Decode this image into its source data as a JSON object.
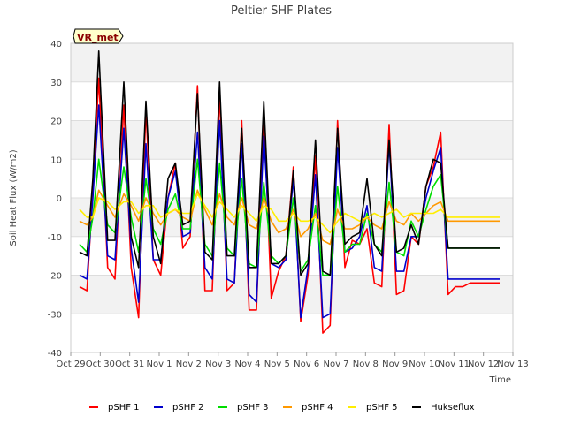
{
  "chart_data": {
    "type": "line",
    "title": "Peltier SHF Plates",
    "xlabel": "Time",
    "ylabel": "Soil Heat Flux (W/m2)",
    "badge": "VR_met",
    "x_ticks": [
      "Oct 29",
      "Oct 30",
      "Oct 31",
      "Nov 1",
      "Nov 2",
      "Nov 3",
      "Nov 4",
      "Nov 5",
      "Nov 6",
      "Nov 7",
      "Nov 8",
      "Nov 9",
      "Nov 10",
      "Nov 11",
      "Nov 12",
      "Nov 13"
    ],
    "xlim": [
      0,
      15
    ],
    "ylim": [
      -40,
      40
    ],
    "y_ticks": [
      -40,
      -30,
      -20,
      -10,
      0,
      10,
      20,
      30,
      40
    ],
    "grid": true,
    "background_bands": true,
    "legend_position": "bottom",
    "series": [
      {
        "name": "pSHF 1",
        "color": "#ff0000",
        "x": [
          0.3,
          0.55,
          0.75,
          0.95,
          1.25,
          1.5,
          1.8,
          2.05,
          2.3,
          2.55,
          2.8,
          3.05,
          3.3,
          3.55,
          3.8,
          4.05,
          4.3,
          4.55,
          4.8,
          5.05,
          5.3,
          5.55,
          5.8,
          6.05,
          6.3,
          6.55,
          6.8,
          7.05,
          7.3,
          7.55,
          7.8,
          8.05,
          8.3,
          8.55,
          8.8,
          9.05,
          9.3,
          9.55,
          9.8,
          10.05,
          10.3,
          10.55,
          10.8,
          11.05,
          11.3,
          11.55,
          11.8,
          12.05,
          12.3,
          12.55,
          12.8,
          13.05,
          13.3,
          13.55,
          13.8,
          14.05,
          14.3,
          14.55
        ],
        "y": [
          -23,
          -24,
          2,
          31,
          -18,
          -21,
          24,
          -18,
          -31,
          23,
          -16,
          -20,
          0,
          9,
          -13,
          -10,
          29,
          -24,
          -24,
          27,
          -24,
          -22,
          20,
          -29,
          -29,
          22,
          -26,
          -19,
          -15,
          8,
          -32,
          -20,
          11,
          -35,
          -33,
          20,
          -18,
          -11,
          -12,
          -8,
          -22,
          -23,
          19,
          -25,
          -24,
          -10,
          -12,
          3,
          8,
          17,
          -25,
          -23,
          -23,
          -22,
          -22,
          -22,
          -22,
          -22
        ]
      },
      {
        "name": "pSHF 2",
        "color": "#0000cc",
        "x": [
          0.3,
          0.55,
          0.75,
          0.95,
          1.25,
          1.5,
          1.8,
          2.05,
          2.3,
          2.55,
          2.8,
          3.05,
          3.3,
          3.55,
          3.8,
          4.05,
          4.3,
          4.55,
          4.8,
          5.05,
          5.3,
          5.55,
          5.8,
          6.05,
          6.3,
          6.55,
          6.8,
          7.05,
          7.3,
          7.55,
          7.8,
          8.05,
          8.3,
          8.55,
          8.8,
          9.05,
          9.3,
          9.55,
          9.8,
          10.05,
          10.3,
          10.55,
          10.8,
          11.05,
          11.3,
          11.55,
          11.8,
          12.05,
          12.3,
          12.55,
          12.8,
          13.05,
          13.3,
          13.55,
          13.8,
          14.05,
          14.3,
          14.55
        ],
        "y": [
          -20,
          -21,
          0,
          24,
          -15,
          -16,
          18,
          -13,
          -27,
          14,
          -16,
          -16,
          0,
          7,
          -10,
          -9,
          17,
          -18,
          -21,
          20,
          -21,
          -22,
          14,
          -25,
          -27,
          16,
          -17,
          -18,
          -16,
          5,
          -31,
          -18,
          6,
          -31,
          -30,
          13,
          -14,
          -13,
          -10,
          -2,
          -18,
          -19,
          14,
          -19,
          -19,
          -10,
          -10,
          0,
          7,
          13,
          -21,
          -21,
          -21,
          -21,
          -21,
          -21,
          -21,
          -21
        ]
      },
      {
        "name": "pSHF 3",
        "color": "#00dd00",
        "x": [
          0.3,
          0.55,
          0.75,
          0.95,
          1.25,
          1.5,
          1.8,
          2.05,
          2.3,
          2.55,
          2.8,
          3.05,
          3.3,
          3.55,
          3.8,
          4.05,
          4.3,
          4.55,
          4.8,
          5.05,
          5.3,
          5.55,
          5.8,
          6.05,
          6.3,
          6.55,
          6.8,
          7.05,
          7.3,
          7.55,
          7.8,
          8.05,
          8.3,
          8.55,
          8.8,
          9.05,
          9.3,
          9.55,
          9.8,
          10.05,
          10.3,
          10.55,
          10.8,
          11.05,
          11.3,
          11.55,
          11.8,
          12.05,
          12.3,
          12.55,
          12.8,
          13.05,
          13.3,
          13.55,
          13.8,
          14.05,
          14.3,
          14.55
        ],
        "y": [
          -12,
          -14,
          -5,
          10,
          -7,
          -9,
          8,
          -5,
          -14,
          5,
          -8,
          -12,
          -3,
          1,
          -8,
          -8,
          10,
          -12,
          -15,
          9,
          -13,
          -15,
          5,
          -17,
          -18,
          4,
          -15,
          -17,
          -15,
          0,
          -19,
          -16,
          -2,
          -20,
          -20,
          3,
          -14,
          -12,
          -12,
          -4,
          -12,
          -14,
          4,
          -14,
          -15,
          -6,
          -10,
          -3,
          3,
          6,
          -13,
          -13,
          -13,
          -13,
          -13,
          -13,
          -13,
          -13
        ]
      },
      {
        "name": "pSHF 4",
        "color": "#ff9900",
        "x": [
          0.3,
          0.55,
          0.75,
          0.95,
          1.25,
          1.5,
          1.8,
          2.05,
          2.3,
          2.55,
          2.8,
          3.05,
          3.3,
          3.55,
          3.8,
          4.05,
          4.3,
          4.55,
          4.8,
          5.05,
          5.3,
          5.55,
          5.8,
          6.05,
          6.3,
          6.55,
          6.8,
          7.05,
          7.3,
          7.55,
          7.8,
          8.05,
          8.3,
          8.55,
          8.8,
          9.05,
          9.3,
          9.55,
          9.8,
          10.05,
          10.3,
          10.55,
          10.8,
          11.05,
          11.3,
          11.55,
          11.8,
          12.05,
          12.3,
          12.55,
          12.8,
          13.05,
          13.3,
          13.55,
          13.8,
          14.05,
          14.3,
          14.55
        ],
        "y": [
          -6,
          -7,
          -5,
          2,
          -2,
          -5,
          1,
          -2,
          -6,
          0,
          -4,
          -7,
          -4,
          -3,
          -5,
          -6,
          2,
          -3,
          -7,
          1,
          -5,
          -7,
          0,
          -7,
          -8,
          0,
          -6,
          -9,
          -8,
          -3,
          -10,
          -8,
          -4,
          -11,
          -12,
          -3,
          -8,
          -8,
          -7,
          -5,
          -7,
          -8,
          -1,
          -6,
          -7,
          -4,
          -6,
          -4,
          -2,
          -1,
          -6,
          -6,
          -6,
          -6,
          -6,
          -6,
          -6,
          -6
        ]
      },
      {
        "name": "pSHF 5",
        "color": "#ffee00",
        "x": [
          0.3,
          0.55,
          0.75,
          0.95,
          1.25,
          1.5,
          1.8,
          2.05,
          2.3,
          2.55,
          2.8,
          3.05,
          3.3,
          3.55,
          3.8,
          4.05,
          4.3,
          4.55,
          4.8,
          5.05,
          5.3,
          5.55,
          5.8,
          6.05,
          6.3,
          6.55,
          6.8,
          7.05,
          7.3,
          7.55,
          7.8,
          8.05,
          8.3,
          8.55,
          8.8,
          9.05,
          9.3,
          9.55,
          9.8,
          10.05,
          10.3,
          10.55,
          10.8,
          11.05,
          11.3,
          11.55,
          11.8,
          12.05,
          12.3,
          12.55,
          12.8,
          13.05,
          13.3,
          13.55,
          13.8,
          14.05,
          14.3,
          14.55
        ],
        "y": [
          -3,
          -5,
          -5,
          0,
          -1,
          -3,
          -1,
          -1,
          -4,
          -2,
          -2,
          -5,
          -4,
          -3,
          -4,
          -4,
          1,
          -2,
          -5,
          -1,
          -3,
          -5,
          -2,
          -4,
          -6,
          -2,
          -3,
          -6,
          -6,
          -4,
          -6,
          -6,
          -5,
          -7,
          -9,
          -6,
          -4,
          -5,
          -6,
          -5,
          -4,
          -5,
          -4,
          -3,
          -5,
          -4,
          -4,
          -4,
          -4,
          -3,
          -5,
          -5,
          -5,
          -5,
          -5,
          -5,
          -5,
          -5
        ]
      },
      {
        "name": "Hukseflux",
        "color": "#000000",
        "x": [
          0.3,
          0.55,
          0.75,
          0.95,
          1.25,
          1.5,
          1.8,
          2.05,
          2.3,
          2.55,
          2.8,
          3.05,
          3.3,
          3.55,
          3.8,
          4.05,
          4.3,
          4.55,
          4.8,
          5.05,
          5.3,
          5.55,
          5.8,
          6.05,
          6.3,
          6.55,
          6.8,
          7.05,
          7.3,
          7.55,
          7.8,
          8.05,
          8.3,
          8.55,
          8.8,
          9.05,
          9.3,
          9.55,
          9.8,
          10.05,
          10.3,
          10.55,
          10.8,
          11.05,
          11.3,
          11.55,
          11.8,
          12.05,
          12.3,
          12.55,
          12.8,
          13.05,
          13.3,
          13.55,
          13.8,
          14.05,
          14.3,
          14.55
        ],
        "y": [
          -14,
          -15,
          5,
          38,
          -11,
          -11,
          30,
          -10,
          -18,
          25,
          -10,
          -17,
          5,
          9,
          -7,
          -6,
          27,
          -14,
          -16,
          30,
          -15,
          -15,
          18,
          -18,
          -18,
          25,
          -17,
          -17,
          -15,
          7,
          -20,
          -17,
          15,
          -19,
          -20,
          18,
          -12,
          -10,
          -9,
          5,
          -12,
          -15,
          15,
          -14,
          -13,
          -7,
          -12,
          3,
          10,
          9,
          -13,
          -13,
          -13,
          -13,
          -13,
          -13,
          -13,
          -13
        ]
      }
    ]
  }
}
